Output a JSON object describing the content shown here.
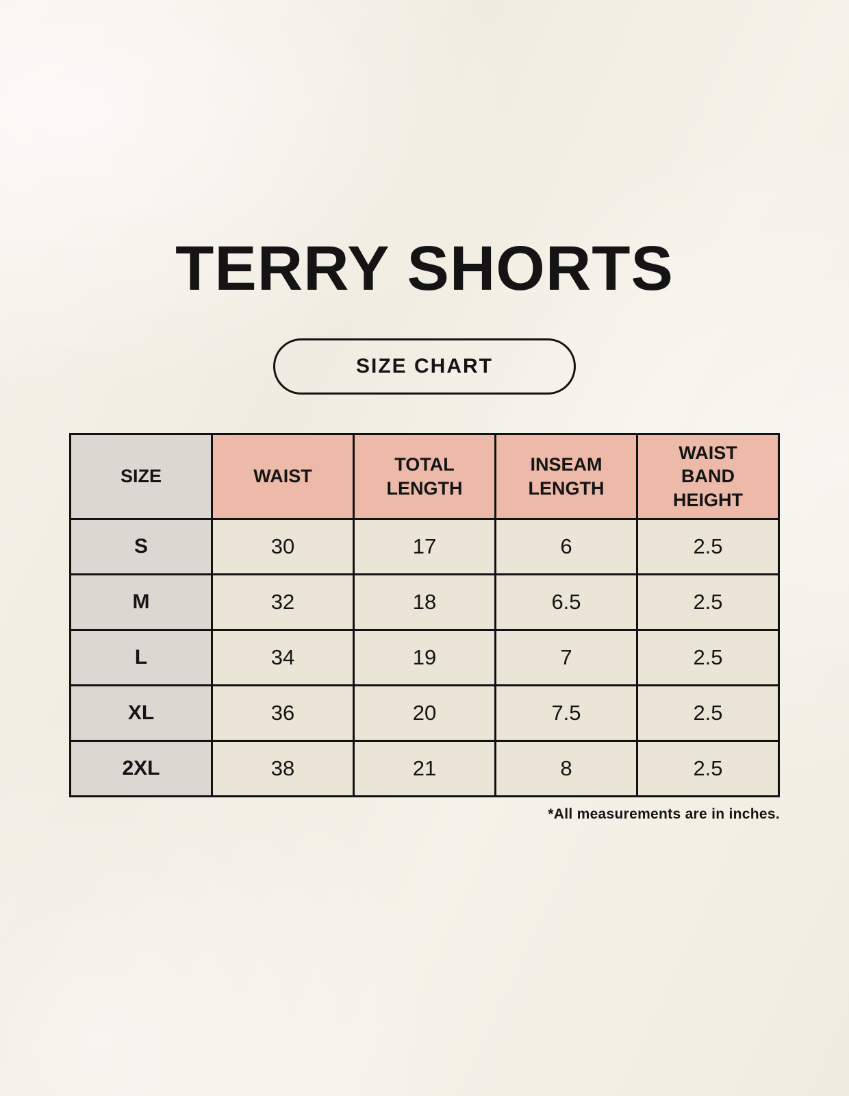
{
  "title": "TERRY SHORTS",
  "badge_label": "SIZE CHART",
  "footnote": "*All measurements are in inches.",
  "chart_data": {
    "type": "table",
    "title": "TERRY SHORTS",
    "columns": [
      "SIZE",
      "WAIST",
      "TOTAL LENGTH",
      "INSEAM LENGTH",
      "WAIST BAND HEIGHT"
    ],
    "rows": [
      [
        "S",
        "30",
        "17",
        "6",
        "2.5"
      ],
      [
        "M",
        "32",
        "18",
        "6.5",
        "2.5"
      ],
      [
        "L",
        "34",
        "19",
        "7",
        "2.5"
      ],
      [
        "XL",
        "36",
        "20",
        "7.5",
        "2.5"
      ],
      [
        "2XL",
        "38",
        "21",
        "8",
        "2.5"
      ]
    ],
    "units": "inches"
  },
  "colors": {
    "background": "#f4f1e8",
    "header_pink": "#edb9a8",
    "header_gray": "#ddd7d2",
    "cell_cream": "#ebe5d7",
    "border": "#121212",
    "text": "#141414"
  }
}
